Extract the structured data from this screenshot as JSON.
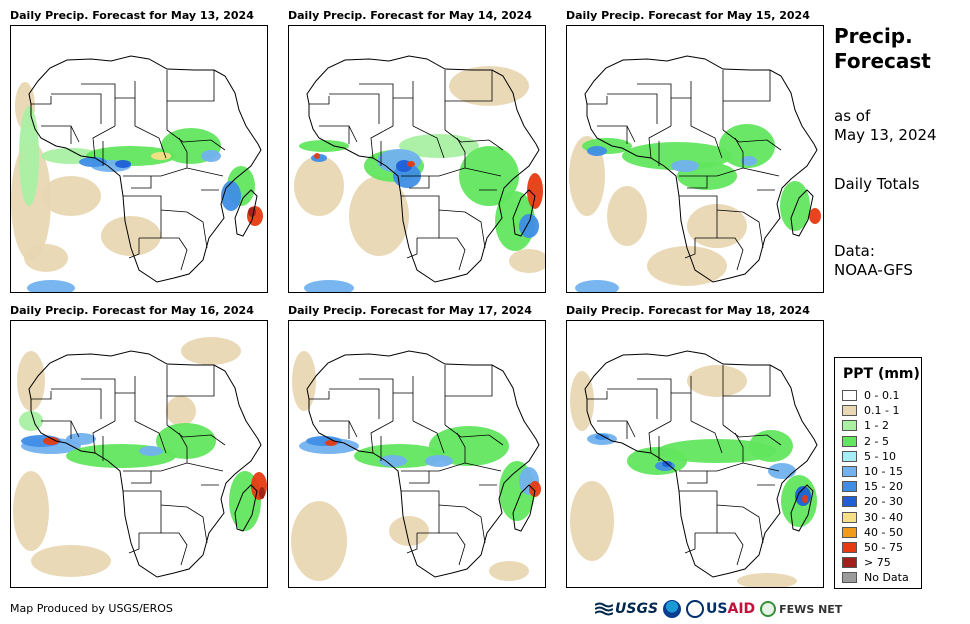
{
  "panels": [
    {
      "title": "Daily Precip. Forecast for May 13, 2024",
      "rain_profile": "widespread equatorial rain, strong storm east of Madagascar"
    },
    {
      "title": "Daily Precip. Forecast for May 14, 2024",
      "rain_profile": "heavy rain over Gulf of Guinea and central Africa, storm near Madagascar"
    },
    {
      "title": "Daily Precip. Forecast for May 15, 2024",
      "rain_profile": "scattered equatorial rain, light rain over Madagascar"
    },
    {
      "title": "Daily Precip. Forecast for May 16, 2024",
      "rain_profile": "rain along West African coast, storm east of Madagascar"
    },
    {
      "title": "Daily Precip. Forecast for May 17, 2024",
      "rain_profile": "equatorial rain, storm north of Madagascar"
    },
    {
      "title": "Daily Precip. Forecast for May 18, 2024",
      "rain_profile": "lighter equatorial rain, storm over Madagascar"
    }
  ],
  "sidebar": {
    "title": "Precip.\nForecast",
    "as_of": "as of\nMay 13, 2024",
    "totals": "Daily Totals",
    "data_source": "Data:\nNOAA-GFS"
  },
  "legend": {
    "title": "PPT (mm)",
    "items": [
      {
        "label": "0 - 0.1",
        "color": "#ffffff"
      },
      {
        "label": "0.1 - 1",
        "color": "#e9d7b3"
      },
      {
        "label": "1 - 2",
        "color": "#a9f0a3"
      },
      {
        "label": "2 - 5",
        "color": "#62e65e"
      },
      {
        "label": "5 - 10",
        "color": "#a6eef5"
      },
      {
        "label": "10 - 15",
        "color": "#72b2ef"
      },
      {
        "label": "15 - 20",
        "color": "#3f8ee6"
      },
      {
        "label": "20 - 30",
        "color": "#1f5fd6"
      },
      {
        "label": "30 - 40",
        "color": "#f7df86"
      },
      {
        "label": "40 - 50",
        "color": "#f29a19"
      },
      {
        "label": "50 - 75",
        "color": "#e63b12"
      },
      {
        "label": "> 75",
        "color": "#a1201c"
      },
      {
        "label": "No Data",
        "color": "#9b9b9b"
      }
    ]
  },
  "footer": {
    "credit": "Map Produced by USGS/EROS",
    "logos": {
      "usgs": "USGS",
      "usaid_prefix": "US",
      "usaid_suffix": "AID",
      "fews": "FEWS NET"
    }
  }
}
